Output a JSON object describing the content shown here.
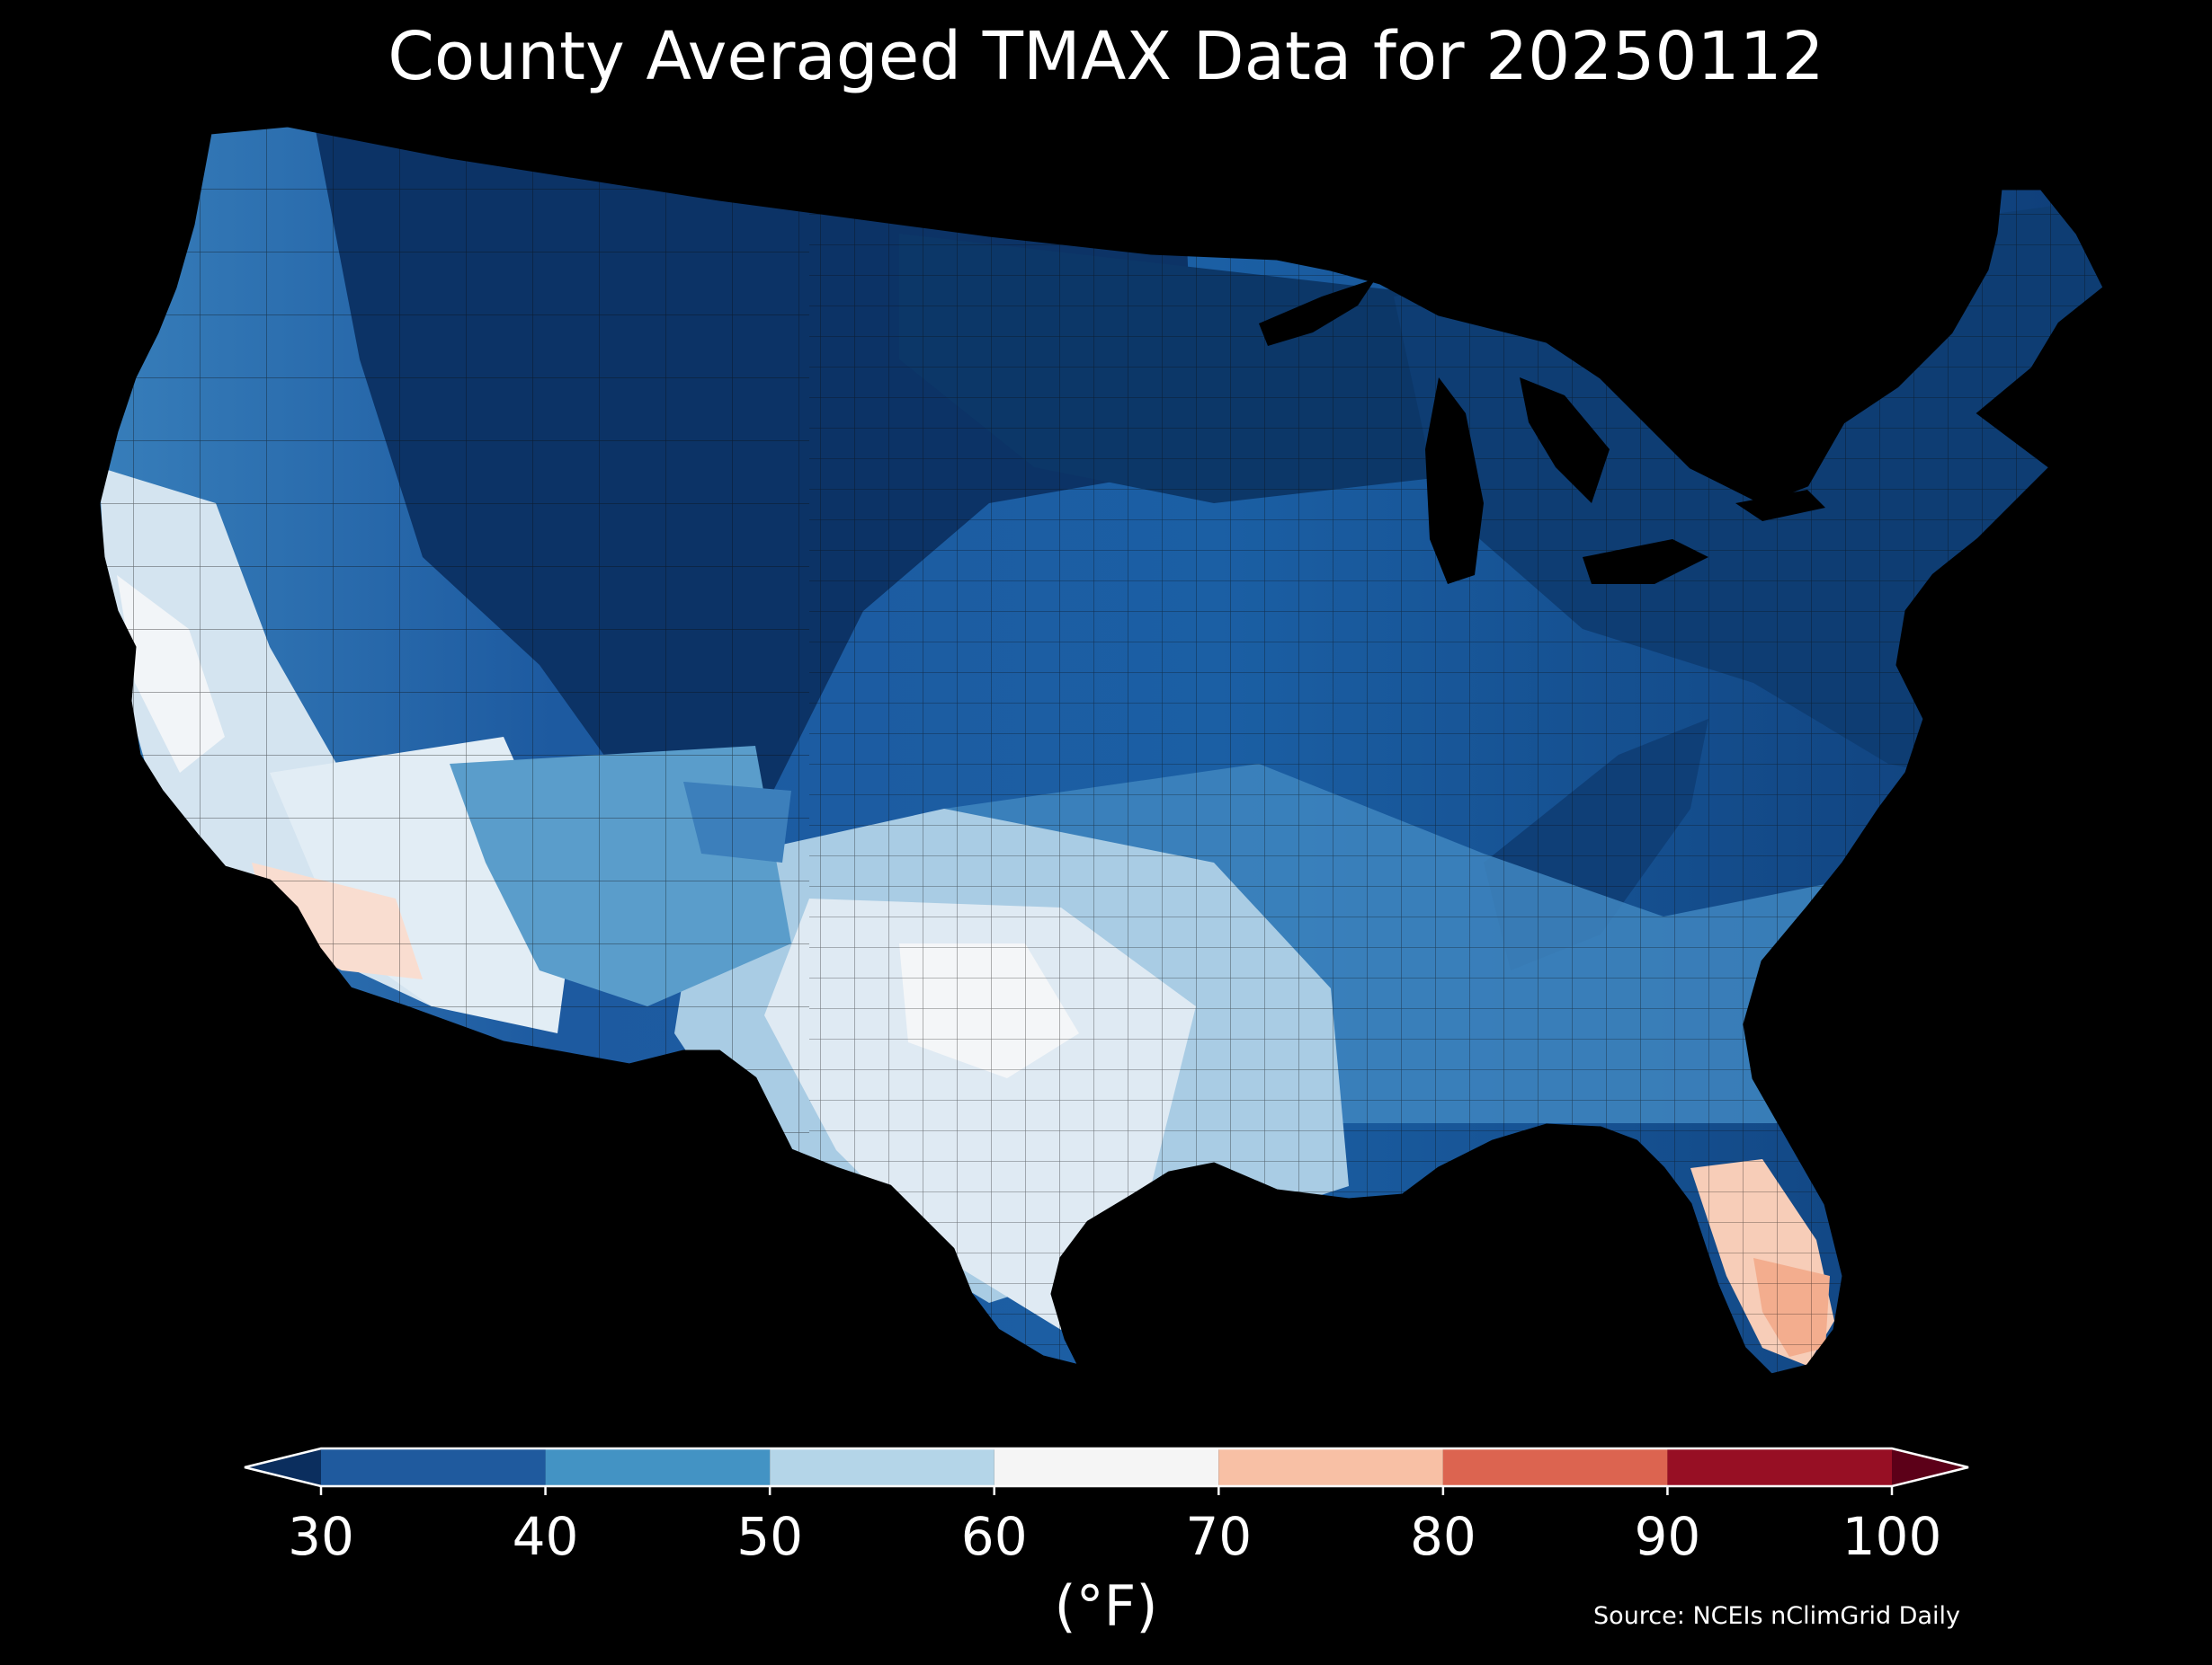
{
  "title": "County Averaged TMAX Data for 20250112",
  "source": "Source: NCEIs nClimGrid Daily",
  "colorbar": {
    "unit_label": "(°F)",
    "ticks": [
      "30",
      "40",
      "50",
      "60",
      "70",
      "80",
      "90",
      "100"
    ],
    "bins": [
      {
        "from": 30,
        "to": 40,
        "color": "#1f5a9e"
      },
      {
        "from": 40,
        "to": 50,
        "color": "#4393c4"
      },
      {
        "from": 50,
        "to": 60,
        "color": "#b4d5e8"
      },
      {
        "from": 60,
        "to": 70,
        "color": "#f5f5f5"
      },
      {
        "from": 70,
        "to": 80,
        "color": "#f8c0a5"
      },
      {
        "from": 80,
        "to": 90,
        "color": "#dc6450"
      },
      {
        "from": 90,
        "to": 100,
        "color": "#970f24"
      }
    ],
    "under_color": "#0b2e5e",
    "over_color": "#5c0018",
    "extend": "both"
  },
  "map": {
    "variable": "TMAX",
    "region": "Contiguous United States",
    "background": "#000000",
    "border_color": "#1a1a1a"
  }
}
